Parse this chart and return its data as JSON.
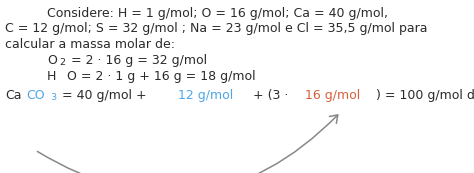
{
  "bg_color": "#ffffff",
  "text_color": "#2b2b2b",
  "blue_color": "#4da6e8",
  "red_color": "#d95f3b",
  "gray_color": "#888888",
  "line1": "Considere: H = 1 g/mol; O = 16 g/mol; Ca = 40 g/mol,",
  "line2": "C = 12 g/mol; S = 32 g/mol ; Na = 23 g/mol e Cl = 35,5 g/mol para",
  "line3": "calcular a massa molar de:",
  "figsize": [
    4.74,
    1.73
  ],
  "dpi": 100,
  "font_size": 9.0
}
